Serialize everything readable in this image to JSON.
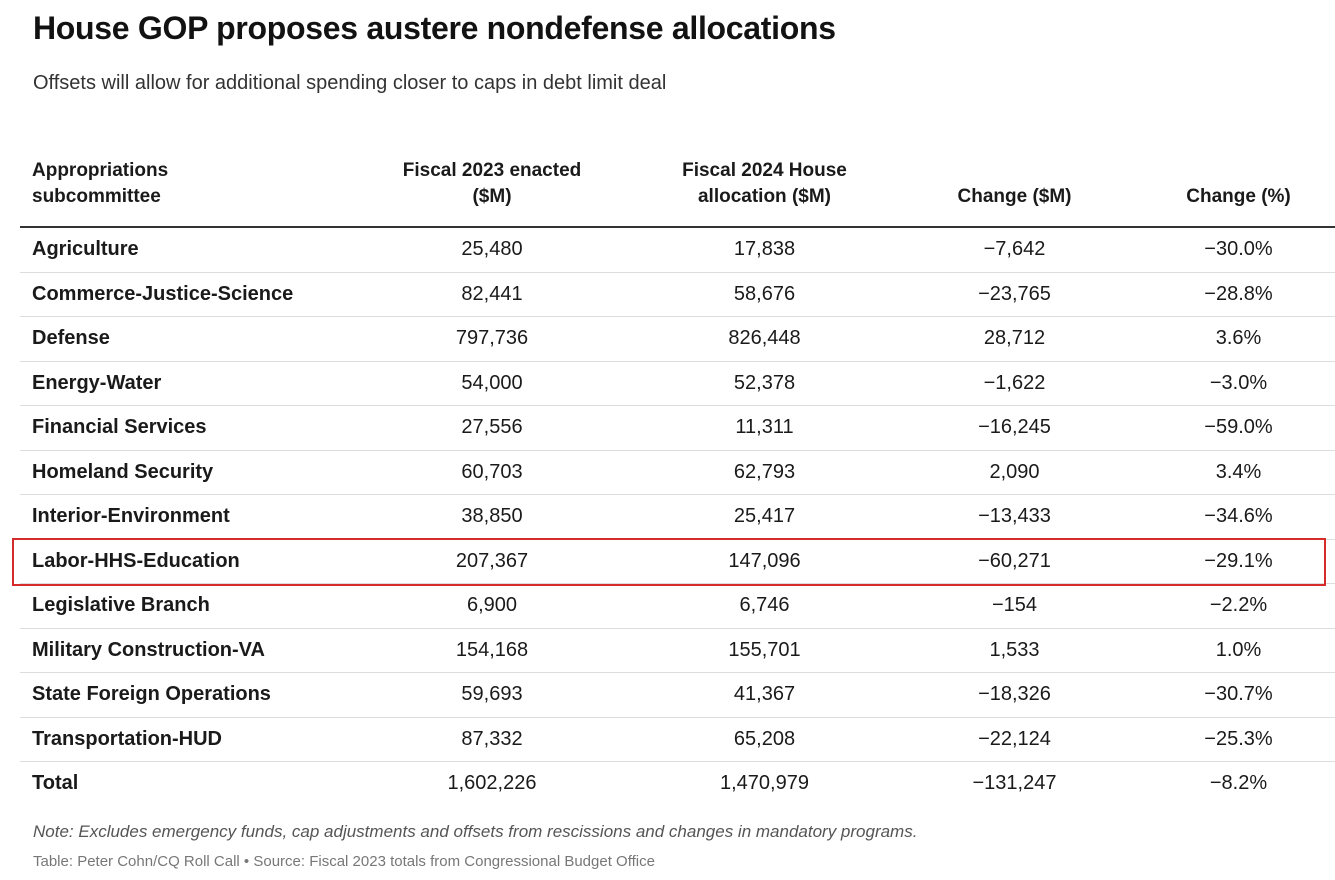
{
  "chart_data": {
    "type": "table",
    "title": "House GOP proposes austere nondefense allocations",
    "subtitle": "Offsets will allow for additional spending closer to caps in debt limit deal",
    "columns": [
      "Appropriations\nsubcommittee",
      "Fiscal 2023 enacted\n($M)",
      "Fiscal 2024 House\nallocation ($M)",
      "Change ($M)",
      "Change (%)"
    ],
    "rows": [
      [
        "Agriculture",
        "25,480",
        "17,838",
        "−7,642",
        "−30.0%"
      ],
      [
        "Commerce-Justice-Science",
        "82,441",
        "58,676",
        "−23,765",
        "−28.8%"
      ],
      [
        "Defense",
        "797,736",
        "826,448",
        "28,712",
        "3.6%"
      ],
      [
        "Energy-Water",
        "54,000",
        "52,378",
        "−1,622",
        "−3.0%"
      ],
      [
        "Financial Services",
        "27,556",
        "11,311",
        "−16,245",
        "−59.0%"
      ],
      [
        "Homeland Security",
        "60,703",
        "62,793",
        "2,090",
        "3.4%"
      ],
      [
        "Interior-Environment",
        "38,850",
        "25,417",
        "−13,433",
        "−34.6%"
      ],
      [
        "Labor-HHS-Education",
        "207,367",
        "147,096",
        "−60,271",
        "−29.1%"
      ],
      [
        "Legislative Branch",
        "6,900",
        "6,746",
        "−154",
        "−2.2%"
      ],
      [
        "Military Construction-VA",
        "154,168",
        "155,701",
        "1,533",
        "1.0%"
      ],
      [
        "State Foreign Operations",
        "59,693",
        "41,367",
        "−18,326",
        "−30.7%"
      ],
      [
        "Transportation-HUD",
        "87,332",
        "65,208",
        "−22,124",
        "−25.3%"
      ],
      [
        "Total",
        "1,602,226",
        "1,470,979",
        "−131,247",
        "−8.2%"
      ]
    ],
    "highlighted_row": "Labor-HHS-Education",
    "highlight_color": "#d52b2b",
    "note": "Note: Excludes emergency funds, cap adjustments and offsets from rescissions and changes in mandatory programs.",
    "credit": "Table: Peter Cohn/CQ Roll Call • Source: Fiscal 2023 totals from Congressional Budget Office"
  }
}
